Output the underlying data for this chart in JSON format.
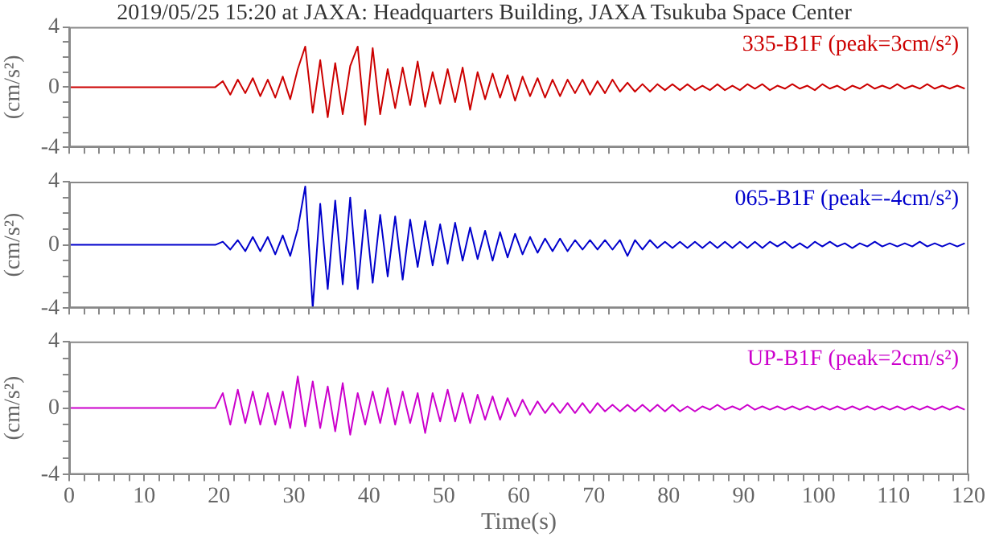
{
  "chart_data": [
    {
      "type": "line",
      "title": "2019/05/25 15:20 at JAXA: Headquarters Building, JAXA Tsukuba Space Center",
      "ylabel": "(cm/s²)",
      "tick_labels": "y",
      "marker": "none",
      "line_style": "solid",
      "grid": false,
      "legend": false,
      "xlim": [
        0,
        120
      ],
      "ylim": [
        -4,
        4
      ],
      "xticks": [
        0,
        {
          "value": 2,
          "label": null
        },
        {
          "value": 4,
          "label": null
        },
        {
          "value": 6,
          "label": null
        },
        {
          "value": 8,
          "label": null
        },
        10,
        {
          "value": 12,
          "label": null
        },
        {
          "value": 14,
          "label": null
        },
        {
          "value": 16,
          "label": null
        },
        {
          "value": 18,
          "label": null
        },
        20,
        {
          "value": 22,
          "label": null
        },
        {
          "value": 24,
          "label": null
        },
        {
          "value": 26,
          "label": null
        },
        {
          "value": 28,
          "label": null
        },
        30,
        {
          "value": 32,
          "label": null
        },
        {
          "value": 34,
          "label": null
        },
        {
          "value": 36,
          "label": null
        },
        {
          "value": 38,
          "label": null
        },
        40,
        {
          "value": 42,
          "label": null
        },
        {
          "value": 44,
          "label": null
        },
        {
          "value": 46,
          "label": null
        },
        {
          "value": 48,
          "label": null
        },
        50,
        {
          "value": 52,
          "label": null
        },
        {
          "value": 54,
          "label": null
        },
        {
          "value": 56,
          "label": null
        },
        {
          "value": 58,
          "label": null
        },
        60,
        {
          "value": 62,
          "label": null
        },
        {
          "value": 64,
          "label": null
        },
        {
          "value": 66,
          "label": null
        },
        {
          "value": 68,
          "label": null
        },
        70,
        {
          "value": 72,
          "label": null
        },
        {
          "value": 74,
          "label": null
        },
        {
          "value": 76,
          "label": null
        },
        {
          "value": 78,
          "label": null
        },
        80,
        {
          "value": 82,
          "label": null
        },
        {
          "value": 84,
          "label": null
        },
        {
          "value": 86,
          "label": null
        },
        {
          "value": 88,
          "label": null
        },
        90,
        {
          "value": 92,
          "label": null
        },
        {
          "value": 94,
          "label": null
        },
        {
          "value": 96,
          "label": null
        },
        {
          "value": 98,
          "label": null
        },
        100,
        {
          "value": 102,
          "label": null
        },
        {
          "value": 104,
          "label": null
        },
        {
          "value": 106,
          "label": null
        },
        {
          "value": 108,
          "label": null
        },
        110,
        {
          "value": 112,
          "label": null
        },
        {
          "value": 114,
          "label": null
        },
        {
          "value": 116,
          "label": null
        },
        {
          "value": 118,
          "label": null
        },
        120
      ],
      "yticks": [
        -4,
        {
          "value": -3,
          "label": null
        },
        {
          "value": -2,
          "label": null
        },
        {
          "value": -1,
          "label": null
        },
        0,
        {
          "value": 1,
          "label": null
        },
        {
          "value": 2,
          "label": null
        },
        {
          "value": 3,
          "label": null
        },
        4
      ],
      "x": [
        0,
        19.5,
        20.5,
        21.5,
        22.5,
        23.5,
        24.5,
        25.5,
        26.5,
        27.5,
        28.5,
        29.5,
        30.5,
        31.5,
        32.5,
        33.5,
        34.5,
        35.5,
        36.5,
        37.5,
        38.5,
        39.5,
        40.5,
        41.5,
        42.5,
        43.5,
        44.5,
        45.5,
        46.5,
        47.5,
        48.5,
        49.5,
        50.5,
        51.5,
        52.5,
        53.5,
        54.5,
        55.5,
        56.5,
        57.5,
        58.5,
        59.5,
        60.5,
        61.5,
        62.5,
        63.5,
        64.5,
        65.5,
        66.5,
        67.5,
        68.5,
        69.5,
        70.5,
        71.5,
        72.5,
        73.5,
        74.5,
        75.5,
        76.5,
        77.5,
        78.5,
        79.5,
        80.5,
        81.5,
        82.5,
        83.5,
        84.5,
        85.5,
        86.5,
        87.5,
        88.5,
        89.5,
        90.5,
        91.5,
        92.5,
        93.5,
        94.5,
        95.5,
        96.5,
        97.5,
        98.5,
        99.5,
        100.5,
        101.5,
        102.5,
        103.5,
        104.5,
        105.5,
        106.5,
        107.5,
        108.5,
        109.5,
        110.5,
        111.5,
        112.5,
        113.5,
        114.5,
        115.5,
        116.5,
        117.5,
        118.5,
        119.5
      ],
      "series": [
        {
          "name": "335-B1F (peak=3cm/s²)",
          "color": "#cc0000",
          "values": [
            0,
            0,
            0.4,
            -0.5,
            0.5,
            -0.4,
            0.6,
            -0.6,
            0.5,
            -0.7,
            0.7,
            -0.8,
            1.2,
            2.7,
            -1.7,
            1.8,
            -2.0,
            1.6,
            -1.8,
            1.4,
            2.7,
            -2.5,
            2.6,
            -1.8,
            1.2,
            -1.4,
            1.3,
            -1.2,
            1.7,
            -1.3,
            1.0,
            -1.1,
            1.2,
            -1.0,
            1.3,
            -1.5,
            1.0,
            -0.8,
            0.9,
            -0.7,
            0.8,
            -0.9,
            0.7,
            -0.6,
            0.6,
            -0.7,
            0.5,
            -0.6,
            0.5,
            -0.4,
            0.5,
            -0.5,
            0.4,
            -0.4,
            0.5,
            -0.3,
            0.3,
            -0.3,
            0.2,
            -0.3,
            0.2,
            -0.2,
            0.2,
            -0.2,
            0.2,
            -0.2,
            0.1,
            -0.2,
            0.2,
            -0.2,
            0.1,
            -0.2,
            0.2,
            -0.1,
            0.2,
            -0.2,
            0.1,
            -0.1,
            0.2,
            -0.1,
            0.1,
            -0.2,
            0.2,
            -0.1,
            0.1,
            -0.2,
            0.1,
            -0.1,
            0.2,
            -0.1,
            0.1,
            -0.1,
            0.2,
            -0.1,
            0.1,
            -0.1,
            0.2,
            -0.1,
            0.1,
            -0.1,
            0.1,
            -0.1
          ]
        }
      ]
    },
    {
      "type": "line",
      "ylabel": "(cm/s²)",
      "tick_labels": "y",
      "marker": "none",
      "line_style": "solid",
      "grid": false,
      "legend": false,
      "xlim": [
        0,
        120
      ],
      "ylim": [
        -4,
        4
      ],
      "xticks": [
        0,
        {
          "value": 2,
          "label": null
        },
        {
          "value": 4,
          "label": null
        },
        {
          "value": 6,
          "label": null
        },
        {
          "value": 8,
          "label": null
        },
        10,
        {
          "value": 12,
          "label": null
        },
        {
          "value": 14,
          "label": null
        },
        {
          "value": 16,
          "label": null
        },
        {
          "value": 18,
          "label": null
        },
        20,
        {
          "value": 22,
          "label": null
        },
        {
          "value": 24,
          "label": null
        },
        {
          "value": 26,
          "label": null
        },
        {
          "value": 28,
          "label": null
        },
        30,
        {
          "value": 32,
          "label": null
        },
        {
          "value": 34,
          "label": null
        },
        {
          "value": 36,
          "label": null
        },
        {
          "value": 38,
          "label": null
        },
        40,
        {
          "value": 42,
          "label": null
        },
        {
          "value": 44,
          "label": null
        },
        {
          "value": 46,
          "label": null
        },
        {
          "value": 48,
          "label": null
        },
        50,
        {
          "value": 52,
          "label": null
        },
        {
          "value": 54,
          "label": null
        },
        {
          "value": 56,
          "label": null
        },
        {
          "value": 58,
          "label": null
        },
        60,
        {
          "value": 62,
          "label": null
        },
        {
          "value": 64,
          "label": null
        },
        {
          "value": 66,
          "label": null
        },
        {
          "value": 68,
          "label": null
        },
        70,
        {
          "value": 72,
          "label": null
        },
        {
          "value": 74,
          "label": null
        },
        {
          "value": 76,
          "label": null
        },
        {
          "value": 78,
          "label": null
        },
        80,
        {
          "value": 82,
          "label": null
        },
        {
          "value": 84,
          "label": null
        },
        {
          "value": 86,
          "label": null
        },
        {
          "value": 88,
          "label": null
        },
        90,
        {
          "value": 92,
          "label": null
        },
        {
          "value": 94,
          "label": null
        },
        {
          "value": 96,
          "label": null
        },
        {
          "value": 98,
          "label": null
        },
        100,
        {
          "value": 102,
          "label": null
        },
        {
          "value": 104,
          "label": null
        },
        {
          "value": 106,
          "label": null
        },
        {
          "value": 108,
          "label": null
        },
        110,
        {
          "value": 112,
          "label": null
        },
        {
          "value": 114,
          "label": null
        },
        {
          "value": 116,
          "label": null
        },
        {
          "value": 118,
          "label": null
        },
        120
      ],
      "yticks": [
        -4,
        {
          "value": -3,
          "label": null
        },
        {
          "value": -2,
          "label": null
        },
        {
          "value": -1,
          "label": null
        },
        0,
        {
          "value": 1,
          "label": null
        },
        {
          "value": 2,
          "label": null
        },
        {
          "value": 3,
          "label": null
        },
        4
      ],
      "x": [
        0,
        19.5,
        20.5,
        21.5,
        22.5,
        23.5,
        24.5,
        25.5,
        26.5,
        27.5,
        28.5,
        29.5,
        30.5,
        31.5,
        32.5,
        33.5,
        34.5,
        35.5,
        36.5,
        37.5,
        38.5,
        39.5,
        40.5,
        41.5,
        42.5,
        43.5,
        44.5,
        45.5,
        46.5,
        47.5,
        48.5,
        49.5,
        50.5,
        51.5,
        52.5,
        53.5,
        54.5,
        55.5,
        56.5,
        57.5,
        58.5,
        59.5,
        60.5,
        61.5,
        62.5,
        63.5,
        64.5,
        65.5,
        66.5,
        67.5,
        68.5,
        69.5,
        70.5,
        71.5,
        72.5,
        73.5,
        74.5,
        75.5,
        76.5,
        77.5,
        78.5,
        79.5,
        80.5,
        81.5,
        82.5,
        83.5,
        84.5,
        85.5,
        86.5,
        87.5,
        88.5,
        89.5,
        90.5,
        91.5,
        92.5,
        93.5,
        94.5,
        95.5,
        96.5,
        97.5,
        98.5,
        99.5,
        100.5,
        101.5,
        102.5,
        103.5,
        104.5,
        105.5,
        106.5,
        107.5,
        108.5,
        109.5,
        110.5,
        111.5,
        112.5,
        113.5,
        114.5,
        115.5,
        116.5,
        117.5,
        118.5,
        119.5
      ],
      "series": [
        {
          "name": "065-B1F (peak=-4cm/s²)",
          "color": "#0000cc",
          "values": [
            0,
            0,
            0.2,
            -0.3,
            0.3,
            -0.4,
            0.5,
            -0.4,
            0.5,
            -0.6,
            0.6,
            -0.7,
            1.0,
            3.7,
            -4.0,
            2.6,
            -2.8,
            2.8,
            -2.5,
            3.0,
            -2.8,
            2.2,
            -2.4,
            1.9,
            -2.0,
            1.8,
            -2.2,
            1.6,
            -1.4,
            1.5,
            -1.3,
            1.3,
            -1.2,
            1.4,
            -1.0,
            1.1,
            -0.9,
            0.9,
            -1.0,
            0.8,
            -0.8,
            0.7,
            -0.6,
            0.5,
            -0.5,
            0.4,
            -0.4,
            0.4,
            -0.4,
            0.3,
            -0.3,
            0.3,
            -0.3,
            0.3,
            -0.3,
            0.3,
            -0.7,
            0.3,
            -0.3,
            0.3,
            -0.2,
            0.2,
            -0.2,
            0.2,
            -0.2,
            0.2,
            -0.2,
            0.2,
            -0.2,
            0.2,
            -0.2,
            0.2,
            -0.2,
            0.2,
            -0.2,
            0.2,
            -0.1,
            0.2,
            -0.2,
            0.1,
            -0.2,
            0.2,
            -0.1,
            0.2,
            -0.1,
            0.1,
            -0.2,
            0.1,
            -0.1,
            0.2,
            -0.1,
            0.1,
            -0.1,
            0.1,
            -0.1,
            0.2,
            -0.1,
            0.1,
            -0.1,
            0.1,
            -0.1,
            0.1
          ]
        }
      ]
    },
    {
      "type": "line",
      "xlabel": "Time(s)",
      "ylabel": "(cm/s²)",
      "marker": "none",
      "line_style": "solid",
      "grid": false,
      "legend": false,
      "xlim": [
        0,
        120
      ],
      "ylim": [
        -4,
        4
      ],
      "xticks": [
        0,
        {
          "value": 2,
          "label": null
        },
        {
          "value": 4,
          "label": null
        },
        {
          "value": 6,
          "label": null
        },
        {
          "value": 8,
          "label": null
        },
        10,
        {
          "value": 12,
          "label": null
        },
        {
          "value": 14,
          "label": null
        },
        {
          "value": 16,
          "label": null
        },
        {
          "value": 18,
          "label": null
        },
        20,
        {
          "value": 22,
          "label": null
        },
        {
          "value": 24,
          "label": null
        },
        {
          "value": 26,
          "label": null
        },
        {
          "value": 28,
          "label": null
        },
        30,
        {
          "value": 32,
          "label": null
        },
        {
          "value": 34,
          "label": null
        },
        {
          "value": 36,
          "label": null
        },
        {
          "value": 38,
          "label": null
        },
        40,
        {
          "value": 42,
          "label": null
        },
        {
          "value": 44,
          "label": null
        },
        {
          "value": 46,
          "label": null
        },
        {
          "value": 48,
          "label": null
        },
        50,
        {
          "value": 52,
          "label": null
        },
        {
          "value": 54,
          "label": null
        },
        {
          "value": 56,
          "label": null
        },
        {
          "value": 58,
          "label": null
        },
        60,
        {
          "value": 62,
          "label": null
        },
        {
          "value": 64,
          "label": null
        },
        {
          "value": 66,
          "label": null
        },
        {
          "value": 68,
          "label": null
        },
        70,
        {
          "value": 72,
          "label": null
        },
        {
          "value": 74,
          "label": null
        },
        {
          "value": 76,
          "label": null
        },
        {
          "value": 78,
          "label": null
        },
        80,
        {
          "value": 82,
          "label": null
        },
        {
          "value": 84,
          "label": null
        },
        {
          "value": 86,
          "label": null
        },
        {
          "value": 88,
          "label": null
        },
        90,
        {
          "value": 92,
          "label": null
        },
        {
          "value": 94,
          "label": null
        },
        {
          "value": 96,
          "label": null
        },
        {
          "value": 98,
          "label": null
        },
        100,
        {
          "value": 102,
          "label": null
        },
        {
          "value": 104,
          "label": null
        },
        {
          "value": 106,
          "label": null
        },
        {
          "value": 108,
          "label": null
        },
        110,
        {
          "value": 112,
          "label": null
        },
        {
          "value": 114,
          "label": null
        },
        {
          "value": 116,
          "label": null
        },
        {
          "value": 118,
          "label": null
        },
        120
      ],
      "yticks": [
        -4,
        {
          "value": -3,
          "label": null
        },
        {
          "value": -2,
          "label": null
        },
        {
          "value": -1,
          "label": null
        },
        0,
        {
          "value": 1,
          "label": null
        },
        {
          "value": 2,
          "label": null
        },
        {
          "value": 3,
          "label": null
        },
        4
      ],
      "x": [
        0,
        19.5,
        20.5,
        21.5,
        22.5,
        23.5,
        24.5,
        25.5,
        26.5,
        27.5,
        28.5,
        29.5,
        30.5,
        31.5,
        32.5,
        33.5,
        34.5,
        35.5,
        36.5,
        37.5,
        38.5,
        39.5,
        40.5,
        41.5,
        42.5,
        43.5,
        44.5,
        45.5,
        46.5,
        47.5,
        48.5,
        49.5,
        50.5,
        51.5,
        52.5,
        53.5,
        54.5,
        55.5,
        56.5,
        57.5,
        58.5,
        59.5,
        60.5,
        61.5,
        62.5,
        63.5,
        64.5,
        65.5,
        66.5,
        67.5,
        68.5,
        69.5,
        70.5,
        71.5,
        72.5,
        73.5,
        74.5,
        75.5,
        76.5,
        77.5,
        78.5,
        79.5,
        80.5,
        81.5,
        82.5,
        83.5,
        84.5,
        85.5,
        86.5,
        87.5,
        88.5,
        89.5,
        90.5,
        91.5,
        92.5,
        93.5,
        94.5,
        95.5,
        96.5,
        97.5,
        98.5,
        99.5,
        100.5,
        101.5,
        102.5,
        103.5,
        104.5,
        105.5,
        106.5,
        107.5,
        108.5,
        109.5,
        110.5,
        111.5,
        112.5,
        113.5,
        114.5,
        115.5,
        116.5,
        117.5,
        118.5,
        119.5
      ],
      "series": [
        {
          "name": "UP-B1F (peak=2cm/s²)",
          "color": "#cc00cc",
          "values": [
            0,
            0,
            0.9,
            -1.0,
            1.1,
            -0.9,
            1.0,
            -1.0,
            0.9,
            -1.0,
            1.0,
            -1.2,
            1.9,
            -1.1,
            1.6,
            -1.2,
            1.3,
            -1.4,
            1.5,
            -1.6,
            0.9,
            -1.0,
            1.0,
            -0.9,
            1.2,
            -1.0,
            1.0,
            -0.9,
            0.9,
            -1.5,
            0.9,
            -0.8,
            1.1,
            -0.8,
            0.9,
            -0.9,
            0.8,
            -0.7,
            0.7,
            -0.7,
            0.6,
            -0.5,
            0.5,
            -0.4,
            0.4,
            -0.3,
            0.3,
            -0.3,
            0.3,
            -0.3,
            0.3,
            -0.3,
            0.3,
            -0.2,
            0.2,
            -0.2,
            0.2,
            -0.2,
            0.2,
            -0.2,
            0.2,
            -0.2,
            0.2,
            -0.2,
            0.1,
            -0.2,
            0.1,
            -0.1,
            0.2,
            -0.1,
            0.1,
            -0.1,
            0.2,
            -0.1,
            0.1,
            -0.1,
            0.1,
            -0.1,
            0.1,
            -0.1,
            0.1,
            -0.1,
            0.1,
            -0.1,
            0.1,
            -0.1,
            0.1,
            -0.1,
            0.1,
            -0.1,
            0.1,
            -0.1,
            0.1,
            -0.1,
            0.1,
            -0.1,
            0.1,
            -0.1,
            0.1,
            -0.1,
            0.1,
            -0.1
          ]
        }
      ]
    }
  ]
}
